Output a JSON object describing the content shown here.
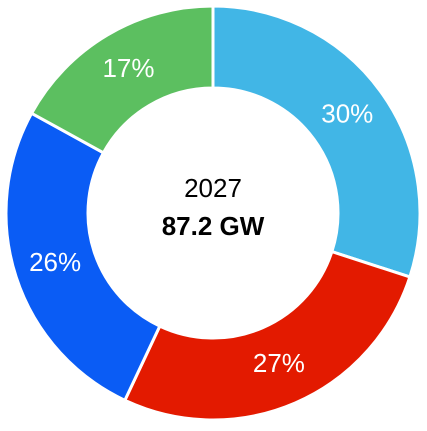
{
  "chart_data": {
    "type": "donut",
    "center_title": "2027",
    "center_subtitle": "87.2 GW",
    "values": [
      30,
      27,
      26,
      17
    ],
    "value_labels": [
      "30%",
      "27%",
      "26%",
      "17%"
    ],
    "colors": [
      "#41b6e6",
      "#e31a00",
      "#0a5cf5",
      "#5cbf60"
    ]
  }
}
